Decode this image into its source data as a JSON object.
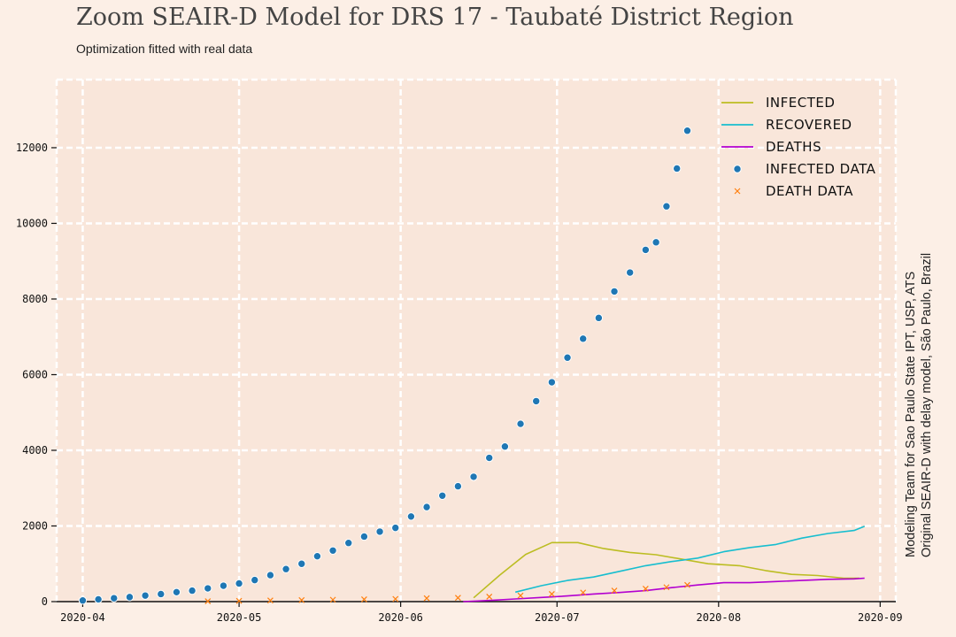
{
  "chart_data": {
    "type": "line",
    "title": "Zoom SEAIR-D Model for DRS 17 - Taubaté District Region",
    "subtitle": "Optimization fitted with real data",
    "credit_line1": "Modeling Team for Sao Paulo State IPT, USP, ATS",
    "credit_line2": "Original SEAIR-D with delay model, São Paulo, Brazil",
    "xlabel": "",
    "ylabel": "",
    "ylim": [
      0,
      13800
    ],
    "xlim": [
      "2020-03-27",
      "2020-09-04"
    ],
    "grid": true,
    "legend_position": "top-right",
    "y_ticks": [
      0,
      2000,
      4000,
      6000,
      8000,
      10000,
      12000
    ],
    "x_ticks": [
      "2020-04",
      "2020-05",
      "2020-06",
      "2020-07",
      "2020-08",
      "2020-09"
    ],
    "x_tick_dates": [
      "2020-04-01",
      "2020-05-01",
      "2020-06-01",
      "2020-07-01",
      "2020-08-01",
      "2020-09-01"
    ],
    "colors": {
      "infected": "#bcbd22",
      "recovered": "#17becf",
      "deaths": "#b300d0",
      "infected_data": "#1f77b4",
      "death_data": "#ff7f0e",
      "background_plot": "#f9e6da"
    },
    "series": [
      {
        "name": "Infected",
        "kind": "line",
        "x": [
          "2020-06-15",
          "2020-06-20",
          "2020-06-25",
          "2020-06-30",
          "2020-07-05",
          "2020-07-10",
          "2020-07-15",
          "2020-07-20",
          "2020-07-25",
          "2020-07-30",
          "2020-08-05",
          "2020-08-10",
          "2020-08-15",
          "2020-08-20",
          "2020-08-25",
          "2020-08-28"
        ],
        "values": [
          100,
          700,
          1250,
          1560,
          1560,
          1400,
          1300,
          1240,
          1120,
          1000,
          950,
          820,
          720,
          690,
          620,
          620
        ]
      },
      {
        "name": "Recovered",
        "kind": "line",
        "x": [
          "2020-06-23",
          "2020-06-28",
          "2020-07-03",
          "2020-07-08",
          "2020-07-13",
          "2020-07-18",
          "2020-07-23",
          "2020-07-28",
          "2020-08-02",
          "2020-08-07",
          "2020-08-12",
          "2020-08-17",
          "2020-08-22",
          "2020-08-27",
          "2020-08-29"
        ],
        "values": [
          250,
          420,
          560,
          650,
          800,
          950,
          1060,
          1150,
          1320,
          1430,
          1510,
          1680,
          1800,
          1880,
          1990
        ]
      },
      {
        "name": "Deaths",
        "kind": "line",
        "x": [
          "2020-06-13",
          "2020-06-18",
          "2020-06-23",
          "2020-06-28",
          "2020-07-03",
          "2020-07-08",
          "2020-07-13",
          "2020-07-18",
          "2020-07-23",
          "2020-07-28",
          "2020-08-02",
          "2020-08-07",
          "2020-08-12",
          "2020-08-17",
          "2020-08-22",
          "2020-08-27",
          "2020-08-29"
        ],
        "values": [
          0,
          30,
          70,
          110,
          150,
          200,
          240,
          290,
          370,
          440,
          500,
          500,
          530,
          560,
          590,
          600,
          620
        ]
      },
      {
        "name": "Infected data",
        "kind": "scatter",
        "x": [
          "2020-04-01",
          "2020-04-04",
          "2020-04-07",
          "2020-04-10",
          "2020-04-13",
          "2020-04-16",
          "2020-04-19",
          "2020-04-22",
          "2020-04-25",
          "2020-04-28",
          "2020-05-01",
          "2020-05-04",
          "2020-05-07",
          "2020-05-10",
          "2020-05-13",
          "2020-05-16",
          "2020-05-19",
          "2020-05-22",
          "2020-05-25",
          "2020-05-28",
          "2020-05-31",
          "2020-06-03",
          "2020-06-06",
          "2020-06-09",
          "2020-06-12",
          "2020-06-15",
          "2020-06-18",
          "2020-06-21",
          "2020-06-24",
          "2020-06-27",
          "2020-06-30",
          "2020-07-03",
          "2020-07-06",
          "2020-07-09",
          "2020-07-12",
          "2020-07-15",
          "2020-07-18",
          "2020-07-20",
          "2020-07-22",
          "2020-07-24",
          "2020-07-26"
        ],
        "values": [
          30,
          60,
          90,
          120,
          160,
          200,
          250,
          290,
          350,
          420,
          480,
          570,
          700,
          860,
          1000,
          1200,
          1350,
          1550,
          1720,
          1850,
          1950,
          2250,
          2500,
          2800,
          3050,
          3300,
          3800,
          4100,
          4700,
          5300,
          5800,
          6450,
          6950,
          7500,
          8200,
          8700,
          9300,
          9500,
          10450,
          11450,
          12450
        ]
      },
      {
        "name": "Death data",
        "kind": "scatter-x",
        "x": [
          "2020-04-25",
          "2020-05-01",
          "2020-05-07",
          "2020-05-13",
          "2020-05-19",
          "2020-05-25",
          "2020-05-31",
          "2020-06-06",
          "2020-06-12",
          "2020-06-18",
          "2020-06-24",
          "2020-06-30",
          "2020-07-06",
          "2020-07-12",
          "2020-07-18",
          "2020-07-22",
          "2020-07-26"
        ],
        "values": [
          10,
          20,
          30,
          40,
          50,
          60,
          70,
          90,
          100,
          130,
          160,
          200,
          240,
          290,
          340,
          380,
          440
        ]
      }
    ]
  }
}
